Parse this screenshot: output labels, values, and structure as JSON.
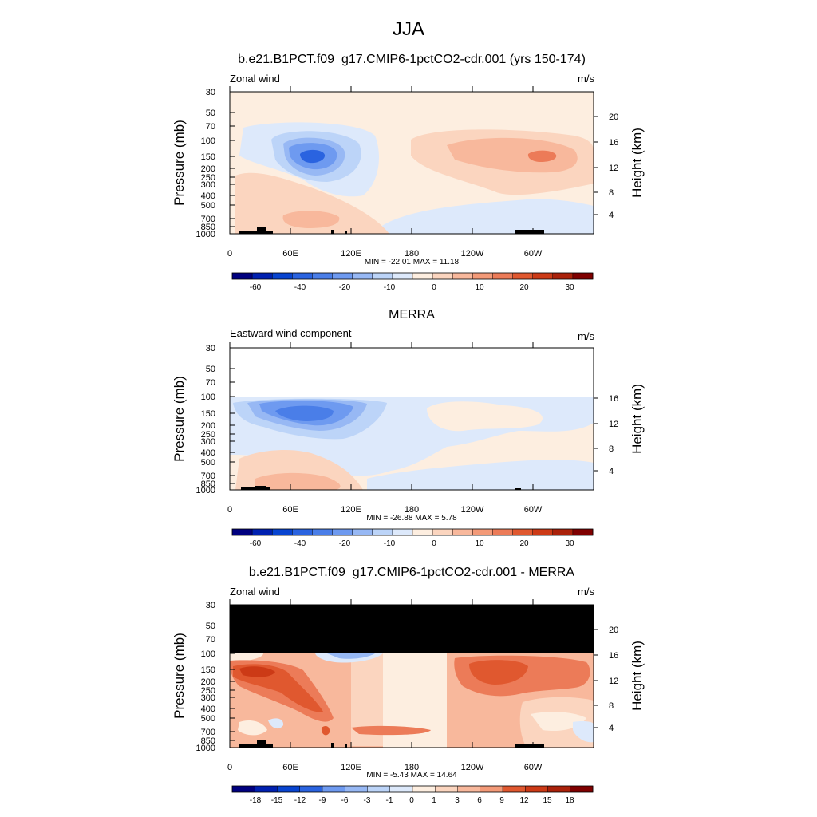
{
  "figure": {
    "title": "JJA"
  },
  "chart_data": [
    {
      "type": "heatmap",
      "title": "b.e21.B1PCT.f09_g17.CMIP6-1pctCO2-cdr.001 (yrs 150-174)",
      "left_label": "Zonal wind",
      "units": "m/s",
      "ylabel": "Pressure (mb)",
      "y2label": "Height (km)",
      "y_ticks": [
        "30",
        "50",
        "70",
        "100",
        "150",
        "200",
        "250",
        "300",
        "400",
        "500",
        "700",
        "850",
        "1000"
      ],
      "y2_ticks": [
        "20",
        "16",
        "12",
        "8",
        "4"
      ],
      "x_ticks": [
        "0",
        "60E",
        "120E",
        "180",
        "120W",
        "60W"
      ],
      "stats": "MIN = -22.01  MAX =  11.18",
      "min": -22.01,
      "max": 11.18,
      "top_pressure": 30,
      "colorbar_labels": [
        "-60",
        "-40",
        "-20",
        "-10",
        "0",
        "10",
        "20",
        "30"
      ],
      "features": [
        {
          "label": "easterly core",
          "lon": 80,
          "p": 150,
          "value": -20
        },
        {
          "label": "westerly core",
          "lon": 300,
          "p": 150,
          "value": 10
        }
      ]
    },
    {
      "type": "heatmap",
      "title": "MERRA",
      "left_label": "Eastward wind component",
      "units": "m/s",
      "ylabel": "Pressure (mb)",
      "y2label": "Height (km)",
      "y_ticks": [
        "30",
        "50",
        "70",
        "100",
        "150",
        "200",
        "250",
        "300",
        "400",
        "500",
        "700",
        "850",
        "1000"
      ],
      "y2_ticks": [
        "16",
        "12",
        "8",
        "4"
      ],
      "x_ticks": [
        "0",
        "60E",
        "120E",
        "180",
        "120W",
        "60W"
      ],
      "stats": "MIN = -26.88  MAX =   5.78",
      "min": -26.88,
      "max": 5.78,
      "top_pressure": 100,
      "colorbar_labels": [
        "-60",
        "-40",
        "-20",
        "-10",
        "0",
        "10",
        "20",
        "30"
      ],
      "features": [
        {
          "label": "easterly core",
          "lon": 80,
          "p": 150,
          "value": -25
        },
        {
          "label": "westerly core",
          "lon": 200,
          "p": 150,
          "value": 5
        }
      ]
    },
    {
      "type": "heatmap",
      "title": "b.e21.B1PCT.f09_g17.CMIP6-1pctCO2-cdr.001 - MERRA",
      "left_label": "Zonal wind",
      "units": "m/s",
      "ylabel": "Pressure (mb)",
      "y2label": "Height (km)",
      "y_ticks": [
        "30",
        "50",
        "70",
        "100",
        "150",
        "200",
        "250",
        "300",
        "400",
        "500",
        "700",
        "850",
        "1000"
      ],
      "y2_ticks": [
        "20",
        "16",
        "12",
        "8",
        "4"
      ],
      "x_ticks": [
        "0",
        "60E",
        "120E",
        "180",
        "120W",
        "60W"
      ],
      "stats": "MIN =  -5.43  MAX =  14.64",
      "min": -5.43,
      "max": 14.64,
      "top_pressure": 100,
      "colorbar_labels": [
        "-18",
        "-15",
        "-12",
        "-9",
        "-6",
        "-3",
        "-1",
        "0",
        "1",
        "3",
        "6",
        "9",
        "12",
        "15",
        "18"
      ],
      "features": [
        {
          "label": "positive difference core",
          "lon": 30,
          "p": 150,
          "value": 14
        },
        {
          "label": "positive difference core",
          "lon": 245,
          "p": 150,
          "value": 12
        }
      ]
    }
  ],
  "colors": {
    "palette": [
      "#00007f",
      "#0020b0",
      "#0844d0",
      "#2a63e0",
      "#4a7ee8",
      "#6e9af0",
      "#97b8f4",
      "#bcd4f8",
      "#dde9fb",
      "#fdeee0",
      "#fbd5bf",
      "#f8b89c",
      "#f39a78",
      "#ec7b58",
      "#e0582f",
      "#cc3a16",
      "#aa210a",
      "#7f0000"
    ],
    "missing": "#000000"
  }
}
